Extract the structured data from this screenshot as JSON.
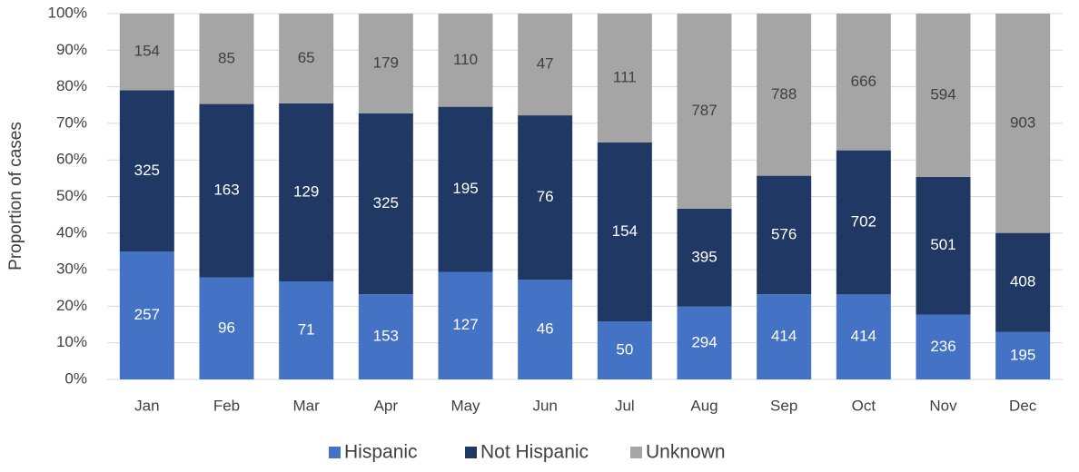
{
  "chart_data": {
    "type": "bar",
    "stacking": "percent",
    "y_label": "Proportion of cases",
    "categories": [
      "Jan",
      "Feb",
      "Mar",
      "Apr",
      "May",
      "Jun",
      "Jul",
      "Aug",
      "Sep",
      "Oct",
      "Nov",
      "Dec"
    ],
    "series": [
      {
        "name": "Hispanic",
        "color": "#4472c4",
        "values": [
          257,
          96,
          71,
          153,
          127,
          46,
          50,
          294,
          414,
          414,
          236,
          195
        ]
      },
      {
        "name": "Not Hispanic",
        "color": "#203864",
        "values": [
          325,
          163,
          129,
          325,
          195,
          76,
          154,
          395,
          576,
          702,
          501,
          408
        ]
      },
      {
        "name": "Unknown",
        "color": "#a5a5a5",
        "values": [
          154,
          85,
          65,
          179,
          110,
          47,
          111,
          787,
          788,
          666,
          594,
          903
        ]
      }
    ],
    "ylim": [
      0,
      100
    ],
    "yticks": [
      {
        "value": 0,
        "label": "0%"
      },
      {
        "value": 10,
        "label": "10%"
      },
      {
        "value": 20,
        "label": "20%"
      },
      {
        "value": 30,
        "label": "30%"
      },
      {
        "value": 40,
        "label": "40%"
      },
      {
        "value": 50,
        "label": "50%"
      },
      {
        "value": 60,
        "label": "60%"
      },
      {
        "value": 70,
        "label": "70%"
      },
      {
        "value": 80,
        "label": "80%"
      },
      {
        "value": 90,
        "label": "90%"
      },
      {
        "value": 100,
        "label": "100%"
      }
    ],
    "grid": true,
    "legend": "bottom"
  }
}
